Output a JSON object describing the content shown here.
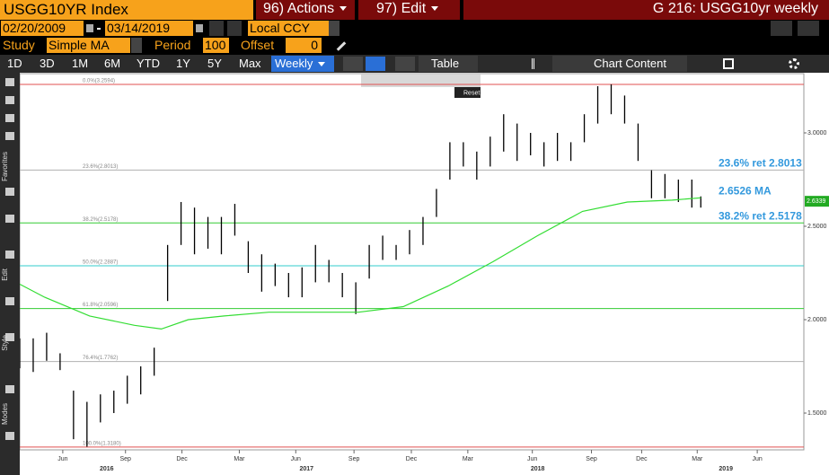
{
  "header": {
    "ticker": "USGG10YR Index",
    "actions": "96) Actions",
    "edit": "97) Edit",
    "title": "G 216: USGG10yr weekly"
  },
  "controls": {
    "start_date": "02/20/2009",
    "end_date": "03/14/2019",
    "currency": "Local CCY",
    "study_label": "Study",
    "study": "Simple MA",
    "period_label": "Period",
    "period": "100",
    "offset_label": "Offset",
    "offset": "0"
  },
  "toolbar": {
    "ranges": [
      "1D",
      "3D",
      "1M",
      "6M",
      "YTD",
      "1Y",
      "5Y",
      "Max"
    ],
    "frequency": "Weekly",
    "table": "Table",
    "chart_content": "Chart Content",
    "reset": "Reset"
  },
  "sidebar": {
    "sections": [
      "Favorites",
      "Edit",
      "Style",
      "Modes"
    ]
  },
  "chart_data": {
    "type": "range",
    "color": "#000000",
    "x": [
      0,
      3,
      6,
      9,
      12,
      15,
      18,
      21,
      24,
      27,
      30,
      33,
      36,
      39,
      42,
      45,
      48,
      51,
      54,
      57,
      60,
      63,
      66,
      69,
      72,
      75,
      78,
      81,
      84,
      87,
      90,
      93,
      96,
      99,
      102,
      105,
      108,
      111,
      114,
      117,
      120,
      123,
      126,
      129,
      132,
      135,
      138,
      141,
      144,
      147,
      150,
      152
    ],
    "high": [
      1.9,
      1.9,
      1.93,
      1.82,
      1.62,
      1.56,
      1.6,
      1.62,
      1.7,
      1.75,
      1.85,
      2.4,
      2.63,
      2.6,
      2.55,
      2.55,
      2.62,
      2.42,
      2.35,
      2.3,
      2.25,
      2.28,
      2.4,
      2.32,
      2.25,
      2.2,
      2.4,
      2.45,
      2.4,
      2.48,
      2.55,
      2.7,
      2.95,
      2.95,
      2.9,
      2.98,
      3.1,
      3.05,
      3.0,
      2.95,
      3.0,
      2.95,
      3.1,
      3.25,
      3.26,
      3.2,
      3.05,
      2.8,
      2.78,
      2.75,
      2.75,
      2.66
    ],
    "low": [
      1.74,
      1.72,
      1.78,
      1.73,
      1.36,
      1.32,
      1.45,
      1.5,
      1.55,
      1.6,
      1.7,
      2.1,
      2.4,
      2.35,
      2.38,
      2.35,
      2.45,
      2.25,
      2.15,
      2.18,
      2.12,
      2.12,
      2.2,
      2.2,
      2.12,
      2.03,
      2.22,
      2.32,
      2.32,
      2.35,
      2.4,
      2.55,
      2.75,
      2.82,
      2.75,
      2.82,
      2.9,
      2.85,
      2.88,
      2.82,
      2.85,
      2.85,
      2.95,
      3.05,
      3.1,
      3.05,
      2.85,
      2.65,
      2.65,
      2.63,
      2.6,
      2.6
    ],
    "ma": {
      "color": "#33dd33",
      "x": [
        0,
        5.6,
        15.6,
        25.6,
        31.6,
        37.6,
        45.6,
        55.6,
        65.6,
        75.6,
        85.6,
        95.6,
        105.6,
        115.6,
        125.6,
        135.6,
        145.6,
        152
      ],
      "values": [
        2.19,
        2.12,
        2.02,
        1.97,
        1.95,
        2.0,
        2.02,
        2.04,
        2.04,
        2.04,
        2.07,
        2.18,
        2.31,
        2.45,
        2.58,
        2.63,
        2.64,
        2.6526
      ]
    },
    "xlim": [
      0,
      175
    ],
    "ylim": [
      1.303,
      3.3125
    ],
    "yticks": [
      {
        "value": 1.5,
        "label": "1.5000"
      },
      {
        "value": 2.0,
        "label": "2.0000"
      },
      {
        "value": 2.5,
        "label": "2.5000"
      },
      {
        "value": 3.0,
        "label": "3.0000"
      }
    ],
    "xticks": [
      {
        "value": 9.6,
        "label": "Jun"
      },
      {
        "value": 23.6,
        "label": "Sep"
      },
      {
        "value": 36.2,
        "label": "Dec"
      },
      {
        "value": 49,
        "label": "Mar"
      },
      {
        "value": 61.6,
        "label": "Jun"
      },
      {
        "value": 74.6,
        "label": "Sep"
      },
      {
        "value": 87.4,
        "label": "Dec"
      },
      {
        "value": 100,
        "label": "Mar"
      },
      {
        "value": 114.4,
        "label": "Jun"
      },
      {
        "value": 127.6,
        "label": "Sep"
      },
      {
        "value": 138.8,
        "label": "Dec"
      },
      {
        "value": 151.2,
        "label": "Mar"
      },
      {
        "value": 164.6,
        "label": "Jun"
      }
    ],
    "year_ticks": [
      {
        "value": 19.4,
        "label": "2016"
      },
      {
        "value": 64,
        "label": "2017"
      },
      {
        "value": 115.6,
        "label": "2018"
      },
      {
        "value": 157.6,
        "label": "2019"
      }
    ],
    "fib_levels": [
      {
        "label": "0.0%(3.2594)",
        "value": 3.2594,
        "color": "#e05050"
      },
      {
        "label": "23.6%(2.8013)",
        "value": 2.8013,
        "color": "#b0b0b0"
      },
      {
        "label": "38.2%(2.5178)",
        "value": 2.5178,
        "color": "#33cc33"
      },
      {
        "label": "50.0%(2.2887)",
        "value": 2.2887,
        "color": "#33cccc"
      },
      {
        "label": "61.8%(2.0596)",
        "value": 2.0596,
        "color": "#33cc33"
      },
      {
        "label": "76.4%(1.7762)",
        "value": 1.7762,
        "color": "#b0b0b0"
      },
      {
        "label": "100.0%(1.3180)",
        "value": 1.318,
        "color": "#e05050"
      }
    ],
    "annotations": [
      {
        "text": "23.6% ret 2.8013",
        "value": 2.8013,
        "color": "#3399dd"
      },
      {
        "text": "2.6526 MA",
        "value": 2.6526,
        "color": "#3399dd"
      },
      {
        "text": "38.2% ret 2.5178",
        "value": 2.5178,
        "color": "#3399dd"
      }
    ],
    "last_price": 2.6339,
    "last_color": "#22aa22"
  }
}
